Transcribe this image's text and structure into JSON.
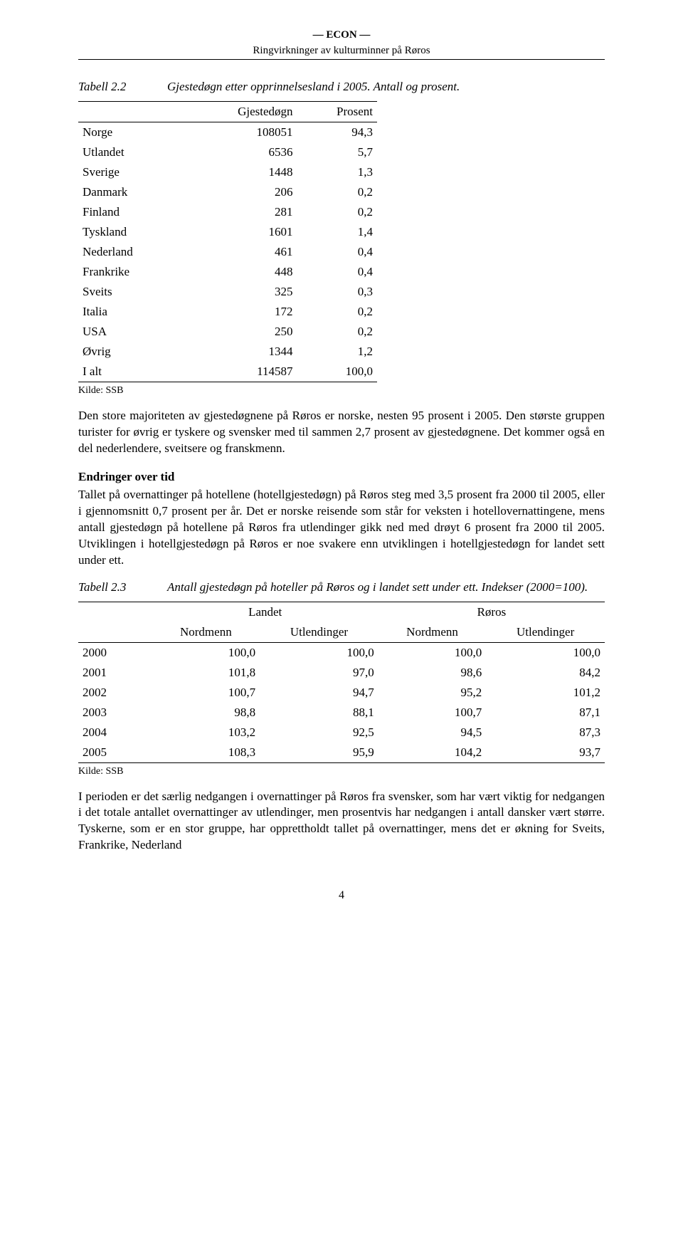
{
  "header": {
    "line1": "— ECON —",
    "line2": "Ringvirkninger av kulturminner på Røros"
  },
  "table1": {
    "caption_num": "Tabell 2.2",
    "caption_title": "Gjestedøgn etter opprinnelsesland i 2005. Antall og prosent.",
    "col_headers": [
      "",
      "Gjestedøgn",
      "Prosent"
    ],
    "rows": [
      {
        "label": "Norge",
        "v1": "108051",
        "v2": "94,3"
      },
      {
        "label": "Utlandet",
        "v1": "6536",
        "v2": "5,7"
      },
      {
        "label": "Sverige",
        "v1": "1448",
        "v2": "1,3"
      },
      {
        "label": "Danmark",
        "v1": "206",
        "v2": "0,2"
      },
      {
        "label": "Finland",
        "v1": "281",
        "v2": "0,2"
      },
      {
        "label": "Tyskland",
        "v1": "1601",
        "v2": "1,4"
      },
      {
        "label": "Nederland",
        "v1": "461",
        "v2": "0,4"
      },
      {
        "label": "Frankrike",
        "v1": "448",
        "v2": "0,4"
      },
      {
        "label": "Sveits",
        "v1": "325",
        "v2": "0,3"
      },
      {
        "label": "Italia",
        "v1": "172",
        "v2": "0,2"
      },
      {
        "label": "USA",
        "v1": "250",
        "v2": "0,2"
      },
      {
        "label": "Øvrig",
        "v1": "1344",
        "v2": "1,2"
      },
      {
        "label": "I alt",
        "v1": "114587",
        "v2": "100,0"
      }
    ],
    "source": "Kilde:  SSB"
  },
  "para1": "Den store majoriteten av gjestedøgnene på Røros er norske, nesten 95 prosent i 2005. Den største gruppen turister for øvrig er tyskere og svensker med til sammen 2,7 prosent av gjestedøgnene. Det kommer også en del nederlendere, sveitsere og franskmenn.",
  "subhead1": "Endringer over tid",
  "para2": "Tallet på overnattinger på hotellene (hotellgjestedøgn) på Røros steg med 3,5 prosent fra 2000 til 2005, eller i gjennomsnitt 0,7 prosent per år. Det er norske reisende som står for veksten i hotellovernattingene, mens antall gjestedøgn på hotellene på Røros fra utlendinger gikk ned med drøyt 6 prosent fra 2000 til 2005. Utviklingen i hotellgjestedøgn på Røros er noe svakere enn utviklingen i hotellgjestedøgn for landet sett under ett.",
  "table2": {
    "caption_num": "Tabell 2.3",
    "caption_title": "Antall gjestedøgn på hoteller på Røros og i landet sett under ett. Indekser (2000=100).",
    "group_headers": [
      "Landet",
      "Røros"
    ],
    "sub_headers": [
      "Nordmenn",
      "Utlendinger",
      "Nordmenn",
      "Utlendinger"
    ],
    "rows": [
      {
        "year": "2000",
        "c1": "100,0",
        "c2": "100,0",
        "c3": "100,0",
        "c4": "100,0"
      },
      {
        "year": "2001",
        "c1": "101,8",
        "c2": "97,0",
        "c3": "98,6",
        "c4": "84,2"
      },
      {
        "year": "2002",
        "c1": "100,7",
        "c2": "94,7",
        "c3": "95,2",
        "c4": "101,2"
      },
      {
        "year": "2003",
        "c1": "98,8",
        "c2": "88,1",
        "c3": "100,7",
        "c4": "87,1"
      },
      {
        "year": "2004",
        "c1": "103,2",
        "c2": "92,5",
        "c3": "94,5",
        "c4": "87,3"
      },
      {
        "year": "2005",
        "c1": "108,3",
        "c2": "95,9",
        "c3": "104,2",
        "c4": "93,7"
      }
    ],
    "source": "Kilde: SSB"
  },
  "para3": "I perioden er det særlig nedgangen i overnattinger på Røros fra svensker, som har vært viktig for nedgangen i det totale antallet overnattinger av utlendinger, men prosentvis har nedgangen i antall dansker vært større. Tyskerne, som er en stor gruppe, har opprettholdt tallet på overnattinger, mens det er økning for Sveits, Frankrike, Nederland",
  "pagenum": "4"
}
